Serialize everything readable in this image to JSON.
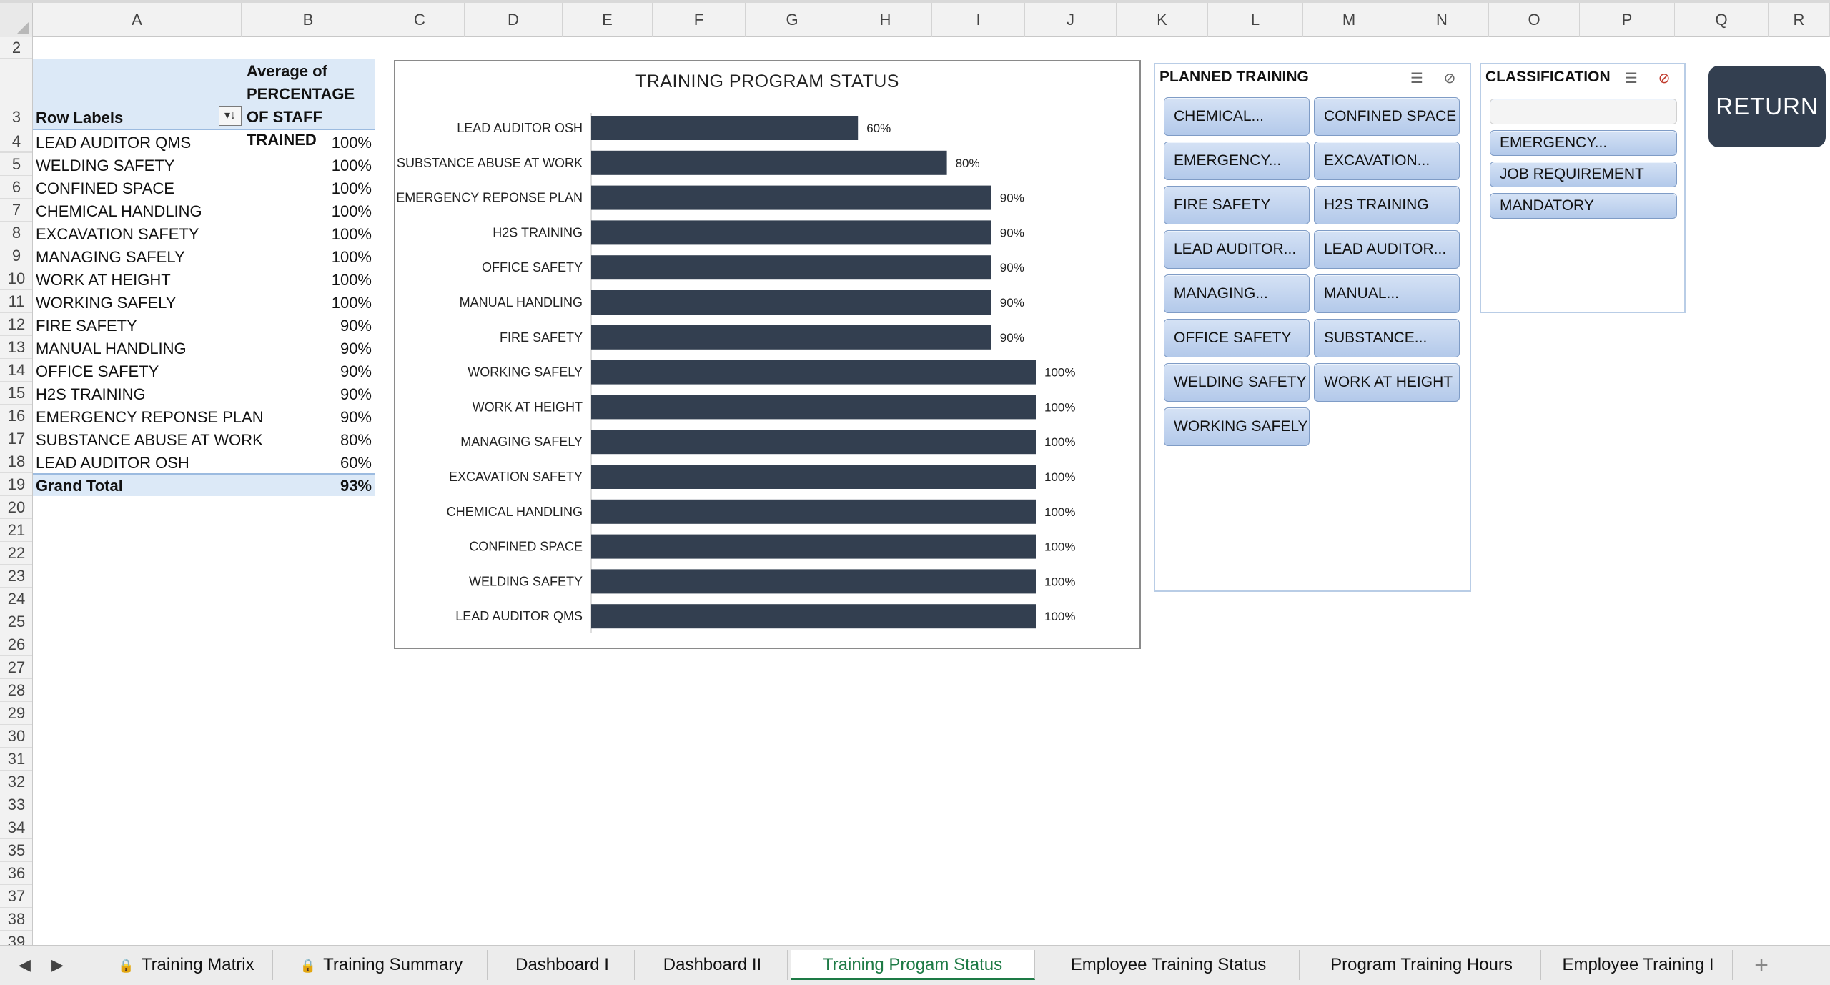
{
  "columns": [
    "A",
    "B",
    "C",
    "D",
    "E",
    "F",
    "G",
    "H",
    "I",
    "J",
    "K",
    "L",
    "M",
    "N",
    "O",
    "P",
    "Q",
    "R"
  ],
  "rows": [
    "2",
    "3",
    "4",
    "5",
    "6",
    "7",
    "8",
    "9",
    "10",
    "11",
    "12",
    "13",
    "14",
    "15",
    "16",
    "17",
    "18",
    "19",
    "20",
    "21",
    "22",
    "23",
    "24",
    "25",
    "26",
    "27",
    "28",
    "29",
    "30",
    "31",
    "32",
    "33",
    "34",
    "35",
    "36",
    "37",
    "38",
    "39"
  ],
  "pivot": {
    "header_a": "Row Labels",
    "header_b": "Average of PERCENTAGE OF STAFF TRAINED",
    "filter_icon": "▾↓",
    "rows": [
      {
        "label": "LEAD AUDITOR QMS",
        "value": "100%"
      },
      {
        "label": "WELDING SAFETY",
        "value": "100%"
      },
      {
        "label": "CONFINED SPACE",
        "value": "100%"
      },
      {
        "label": "CHEMICAL HANDLING",
        "value": "100%"
      },
      {
        "label": "EXCAVATION SAFETY",
        "value": "100%"
      },
      {
        "label": "MANAGING SAFELY",
        "value": "100%"
      },
      {
        "label": "WORK AT HEIGHT",
        "value": "100%"
      },
      {
        "label": "WORKING SAFELY",
        "value": "100%"
      },
      {
        "label": "FIRE SAFETY",
        "value": "90%"
      },
      {
        "label": "MANUAL HANDLING",
        "value": "90%"
      },
      {
        "label": "OFFICE SAFETY",
        "value": "90%"
      },
      {
        "label": "H2S TRAINING",
        "value": "90%"
      },
      {
        "label": "EMERGENCY REPONSE PLAN",
        "value": "90%"
      },
      {
        "label": "SUBSTANCE ABUSE AT WORK",
        "value": "80%"
      },
      {
        "label": "LEAD AUDITOR OSH",
        "value": "60%"
      }
    ],
    "grand_total_label": "Grand Total",
    "grand_total_value": "93%"
  },
  "chart_data": {
    "type": "bar",
    "orientation": "horizontal",
    "title": "TRAINING PROGRAM STATUS",
    "categories": [
      "LEAD AUDITOR OSH",
      "SUBSTANCE ABUSE AT WORK",
      "EMERGENCY REPONSE PLAN",
      "H2S TRAINING",
      "OFFICE SAFETY",
      "MANUAL HANDLING",
      "FIRE SAFETY",
      "WORKING SAFELY",
      "WORK AT HEIGHT",
      "MANAGING SAFELY",
      "EXCAVATION SAFETY",
      "CHEMICAL HANDLING",
      "CONFINED SPACE",
      "WELDING SAFETY",
      "LEAD AUDITOR QMS"
    ],
    "values": [
      60,
      80,
      90,
      90,
      90,
      90,
      90,
      100,
      100,
      100,
      100,
      100,
      100,
      100,
      100
    ],
    "data_labels": [
      "60%",
      "80%",
      "90%",
      "90%",
      "90%",
      "90%",
      "90%",
      "100%",
      "100%",
      "100%",
      "100%",
      "100%",
      "100%",
      "100%",
      "100%"
    ],
    "xlim": [
      0,
      100
    ],
    "bar_color": "#333f50",
    "grid": false,
    "legend": "none"
  },
  "slicer_planned": {
    "title": "PLANNED TRAINING",
    "items": [
      "CHEMICAL...",
      "CONFINED SPACE",
      "EMERGENCY...",
      "EXCAVATION...",
      "FIRE SAFETY",
      "H2S TRAINING",
      "LEAD AUDITOR...",
      "LEAD AUDITOR...",
      "MANAGING...",
      "MANUAL...",
      "OFFICE SAFETY",
      "SUBSTANCE...",
      "WELDING SAFETY",
      "WORK AT HEIGHT",
      "WORKING SAFELY"
    ]
  },
  "slicer_class": {
    "title": "CLASSIFICATION",
    "items": [
      "",
      "EMERGENCY...",
      "JOB REQUIREMENT",
      "MANDATORY"
    ]
  },
  "slicer_icons": {
    "multi_select": "multi-select-icon",
    "clear_filter": "clear-filter-icon"
  },
  "return_button": "RETURN",
  "tabs": [
    {
      "label": "Training Matrix",
      "locked": true
    },
    {
      "label": "Training Summary",
      "locked": true
    },
    {
      "label": "Dashboard I",
      "locked": false
    },
    {
      "label": "Dashboard II",
      "locked": false
    },
    {
      "label": "Training Progam Status",
      "locked": false,
      "active": true
    },
    {
      "label": "Employee Training Status",
      "locked": false
    },
    {
      "label": "Program Training Hours",
      "locked": false
    },
    {
      "label": "Employee Training I",
      "locked": false
    }
  ],
  "add_sheet": "+",
  "colors": {
    "accent_green": "#1d7a45",
    "slicer_blue": "#b3c9ea",
    "pivot_header": "#dce9f7",
    "bar": "#333f50"
  }
}
